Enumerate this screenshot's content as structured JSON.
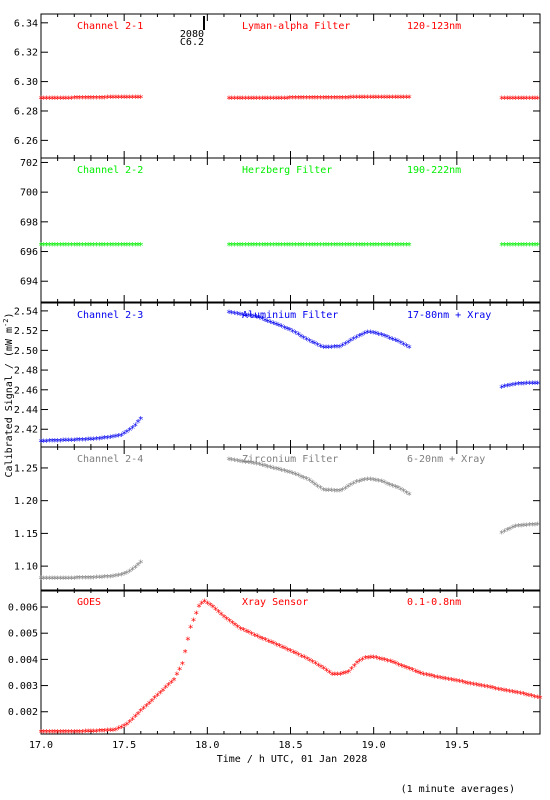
{
  "figure": {
    "ylabel": "Calibrated Signal / (mW m",
    "ylabel_sup": "-2",
    "ylabel_end": ")",
    "xlabel": "Time / h UTC, 01 Jan 2028",
    "footnote": "(1 minute averages)",
    "marker_text_1": "2080",
    "marker_text_2": "C6.2",
    "marker_x": 17.98
  },
  "chart_data": [
    {
      "type": "scatter",
      "channel": "Channel 2-1",
      "filter": "Lyman-alpha Filter",
      "band": "120-123nm",
      "color": "#ff0000",
      "xlim": [
        17.0,
        20.0
      ],
      "ylim": [
        6.248,
        6.346
      ],
      "yticks": [
        6.26,
        6.28,
        6.3,
        6.32,
        6.34
      ],
      "ytick_labels": [
        "6.26",
        "6.28",
        "6.30",
        "6.32",
        "6.34"
      ],
      "segments": [
        {
          "x": [
            17.0,
            17.6
          ],
          "y": [
            6.288,
            6.289
          ]
        },
        {
          "x": [
            18.13,
            19.22
          ],
          "y": [
            6.288,
            6.289
          ]
        },
        {
          "x": [
            19.77,
            20.0
          ],
          "y": [
            6.288,
            6.288
          ]
        }
      ]
    },
    {
      "type": "scatter",
      "channel": "Channel 2-2",
      "filter": "Herzberg Filter",
      "band": "190-222nm",
      "color": "#00ee00",
      "xlim": [
        17.0,
        20.0
      ],
      "ylim": [
        692.6,
        702.3
      ],
      "yticks": [
        694,
        696,
        698,
        700,
        702
      ],
      "ytick_labels": [
        "694",
        "696",
        "698",
        "700",
        "702"
      ],
      "segments": [
        {
          "x": [
            17.0,
            17.6
          ],
          "y": [
            696.4,
            696.4
          ]
        },
        {
          "x": [
            18.13,
            19.22
          ],
          "y": [
            696.4,
            696.4
          ]
        },
        {
          "x": [
            19.77,
            20.0
          ],
          "y": [
            696.4,
            696.4
          ]
        }
      ]
    },
    {
      "type": "scatter",
      "channel": "Channel 2-3",
      "filter": "Aluminium Filter",
      "band": "17-80nm + Xray",
      "color": "#0000ee",
      "xlim": [
        17.0,
        20.0
      ],
      "ylim": [
        2.402,
        2.548
      ],
      "yticks": [
        2.42,
        2.44,
        2.46,
        2.48,
        2.5,
        2.52,
        2.54
      ],
      "ytick_labels": [
        "2.42",
        "2.44",
        "2.46",
        "2.48",
        "2.50",
        "2.52",
        "2.54"
      ],
      "series": [
        {
          "x": [
            17.0,
            17.3,
            17.42,
            17.48,
            17.53,
            17.57,
            17.6
          ],
          "y": [
            2.407,
            2.409,
            2.411,
            2.413,
            2.418,
            2.424,
            2.43
          ]
        },
        {
          "x": [
            18.13,
            18.3,
            18.5,
            18.6,
            18.7,
            18.8,
            18.9,
            18.97,
            19.05,
            19.15,
            19.22
          ],
          "y": [
            2.538,
            2.533,
            2.52,
            2.51,
            2.502,
            2.503,
            2.513,
            2.518,
            2.515,
            2.508,
            2.502
          ]
        },
        {
          "x": [
            19.77,
            19.85,
            19.95,
            20.0
          ],
          "y": [
            2.462,
            2.465,
            2.466,
            2.466
          ]
        }
      ]
    },
    {
      "type": "scatter",
      "channel": "Channel 2-4",
      "filter": "Zirconium Filter",
      "band": "6-20nm + Xray",
      "color": "#808080",
      "xlim": [
        17.0,
        20.0
      ],
      "ylim": [
        1.062,
        1.282
      ],
      "yticks": [
        1.1,
        1.15,
        1.2,
        1.25
      ],
      "ytick_labels": [
        "1.10",
        "1.15",
        "1.20",
        "1.25"
      ],
      "series": [
        {
          "x": [
            17.0,
            17.3,
            17.42,
            17.48,
            17.53,
            17.57,
            17.6
          ],
          "y": [
            1.08,
            1.081,
            1.083,
            1.085,
            1.09,
            1.098,
            1.105
          ]
        },
        {
          "x": [
            18.13,
            18.3,
            18.5,
            18.6,
            18.7,
            18.8,
            18.9,
            18.97,
            19.05,
            19.15,
            19.22
          ],
          "y": [
            1.262,
            1.255,
            1.242,
            1.232,
            1.215,
            1.214,
            1.228,
            1.232,
            1.228,
            1.218,
            1.208
          ]
        },
        {
          "x": [
            19.77,
            19.85,
            19.95,
            20.0
          ],
          "y": [
            1.15,
            1.16,
            1.162,
            1.163
          ]
        }
      ]
    },
    {
      "type": "scatter",
      "channel": "GOES",
      "filter": "Xray Sensor",
      "band": "0.1-0.8nm",
      "color": "#ff0000",
      "xlim": [
        17.0,
        20.0
      ],
      "ylim": [
        0.00115,
        0.00665
      ],
      "yticks": [
        0.002,
        0.003,
        0.004,
        0.005,
        0.006
      ],
      "ytick_labels": [
        "0.002",
        "0.003",
        "0.004",
        "0.005",
        "0.006"
      ],
      "xticks": [
        17.0,
        17.5,
        18.0,
        18.5,
        19.0,
        19.5
      ],
      "xtick_labels": [
        "17.0",
        "17.5",
        "18.0",
        "18.5",
        "19.0",
        "19.5"
      ],
      "series": [
        {
          "x": [
            17.0,
            17.3,
            17.45,
            17.52,
            17.6,
            17.7,
            17.8,
            17.85,
            17.9,
            17.95,
            17.98,
            18.03,
            18.1,
            18.2,
            18.3,
            18.4,
            18.5,
            18.6,
            18.7,
            18.75,
            18.8,
            18.85,
            18.9,
            18.95,
            19.0,
            19.1,
            19.2,
            19.3,
            19.5,
            19.7,
            19.9,
            20.0
          ],
          "y": [
            0.0012,
            0.00122,
            0.00128,
            0.0015,
            0.002,
            0.0026,
            0.0032,
            0.0038,
            0.0052,
            0.006,
            0.0062,
            0.006,
            0.0056,
            0.00515,
            0.00485,
            0.00458,
            0.0043,
            0.004,
            0.00363,
            0.0034,
            0.0034,
            0.0035,
            0.00385,
            0.00403,
            0.00405,
            0.0039,
            0.00365,
            0.0034,
            0.00315,
            0.0029,
            0.00265,
            0.0025
          ]
        }
      ]
    }
  ]
}
